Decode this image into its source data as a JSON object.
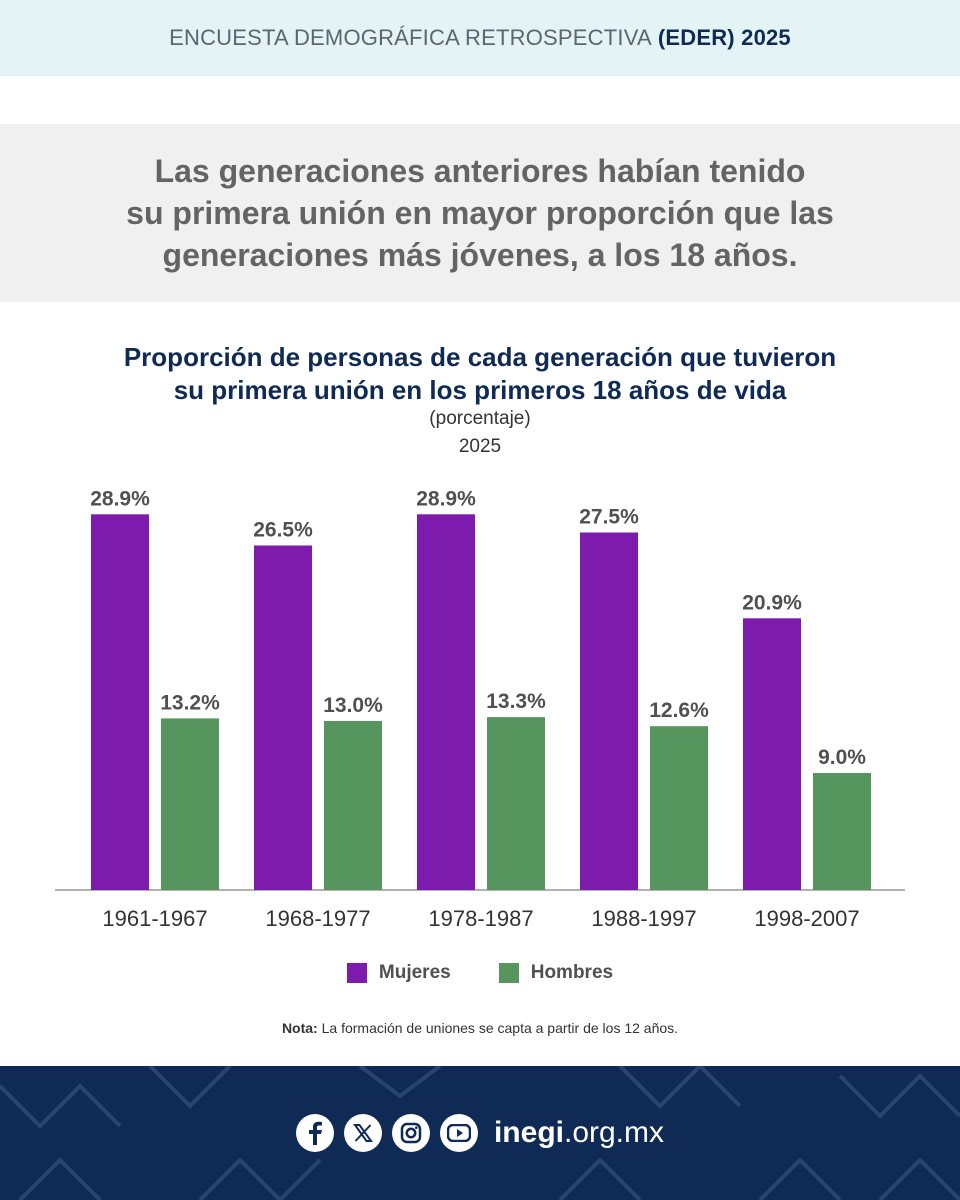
{
  "header": {
    "survey_prefix": "ENCUESTA DEMOGRÁFICA RETROSPECTIVA",
    "survey_highlight": "(EDER) 2025"
  },
  "headline": {
    "lines": [
      "Las generaciones anteriores habían tenido",
      "su primera unión en mayor proporción que las",
      "generaciones más jóvenes, a los 18 años."
    ]
  },
  "chart_data": {
    "type": "bar",
    "title_lines": [
      "Proporción de personas de cada generación que tuvieron",
      "su primera unión en los primeros 18 años de vida"
    ],
    "unit_label": "(porcentaje)",
    "year_label": "2025",
    "categories": [
      "1961-1967",
      "1968-1977",
      "1978-1987",
      "1988-1997",
      "1998-2007"
    ],
    "series": [
      {
        "name": "Mujeres",
        "values": [
          28.9,
          26.5,
          28.9,
          27.5,
          20.9
        ],
        "labels": [
          "28.9%",
          "26.5%",
          "28.9%",
          "27.5%",
          "20.9%"
        ],
        "color": "#7d1bad"
      },
      {
        "name": "Hombres",
        "values": [
          13.2,
          13.0,
          13.3,
          12.6,
          9.0
        ],
        "labels": [
          "13.2%",
          "13.0%",
          "13.3%",
          "12.6%",
          "9.0%"
        ],
        "color": "#56965e"
      }
    ],
    "ylim": [
      0,
      30
    ],
    "grid": false,
    "legend_position": "bottom"
  },
  "note": {
    "label": "Nota:",
    "text": " La formación de uniones se capta a partir de los 12 años."
  },
  "footer": {
    "icons": [
      "facebook-icon",
      "x-icon",
      "instagram-icon",
      "youtube-icon"
    ],
    "site_bold": "inegi",
    "site_rest": ".org.mx"
  },
  "colors": {
    "navy": "#0f2a55",
    "topbar_bg": "#e4f3f6",
    "headline_bg": "#f0f0f0",
    "axis": "#999999"
  }
}
